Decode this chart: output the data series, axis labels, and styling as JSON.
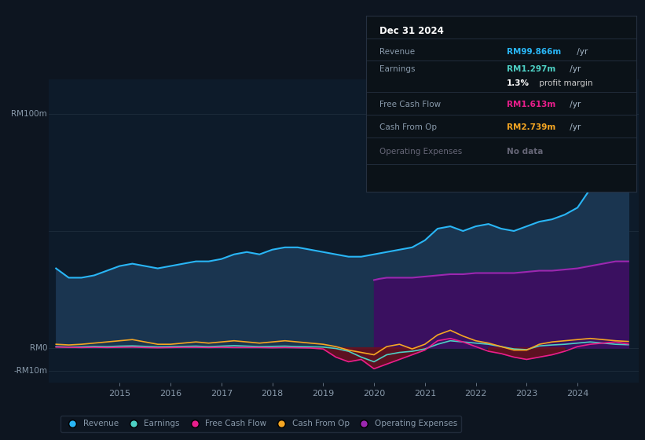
{
  "background_color": "#0d1520",
  "plot_bg_color": "#0d1b2a",
  "revenue_color": "#29b6f6",
  "revenue_fill": "#1a3550",
  "earnings_color": "#4dd0c4",
  "fcf_color": "#e91e8c",
  "cashop_color": "#f5a623",
  "opex_color": "#9c27b0",
  "opex_fill": "#3a1060",
  "fcf_neg_fill": "#6b1020",
  "grid_color": "#1e2d3d",
  "text_color": "#8899aa",
  "legend_labels": [
    "Revenue",
    "Earnings",
    "Free Cash Flow",
    "Cash From Op",
    "Operating Expenses"
  ],
  "legend_colors": [
    "#29b6f6",
    "#4dd0c4",
    "#e91e8c",
    "#f5a623",
    "#9c27b0"
  ],
  "ylim": [
    -15,
    115
  ],
  "xlim": [
    2013.6,
    2025.2
  ],
  "xtick_positions": [
    2015,
    2016,
    2017,
    2018,
    2019,
    2020,
    2021,
    2022,
    2023,
    2024
  ],
  "xtick_labels": [
    "2015",
    "2016",
    "2017",
    "2018",
    "2019",
    "2020",
    "2021",
    "2022",
    "2023",
    "2024"
  ],
  "ylabel_100": "RM100m",
  "ylabel_0": "RM0",
  "ylabel_neg10": "-RM10m",
  "info_title": "Dec 31 2024",
  "info_rows": [
    {
      "label": "Revenue",
      "value": "RM99.866m",
      "suffix": " /yr",
      "value_color": "#29b6f6",
      "label_color": "#8899aa"
    },
    {
      "label": "Earnings",
      "value": "RM1.297m",
      "suffix": " /yr",
      "value_color": "#4dd0c4",
      "label_color": "#8899aa"
    },
    {
      "label": "",
      "value": "1.3%",
      "suffix": " profit margin",
      "value_color": "#ffffff",
      "label_color": "#8899aa"
    },
    {
      "label": "Free Cash Flow",
      "value": "RM1.613m",
      "suffix": " /yr",
      "value_color": "#e91e8c",
      "label_color": "#8899aa"
    },
    {
      "label": "Cash From Op",
      "value": "RM2.739m",
      "suffix": " /yr",
      "value_color": "#f5a623",
      "label_color": "#8899aa"
    },
    {
      "label": "Operating Expenses",
      "value": "No data",
      "suffix": "",
      "value_color": "#666677",
      "label_color": "#666677"
    }
  ],
  "revenue_x": [
    2013.75,
    2014.0,
    2014.25,
    2014.5,
    2014.75,
    2015.0,
    2015.25,
    2015.5,
    2015.75,
    2016.0,
    2016.25,
    2016.5,
    2016.75,
    2017.0,
    2017.25,
    2017.5,
    2017.75,
    2018.0,
    2018.25,
    2018.5,
    2018.75,
    2019.0,
    2019.25,
    2019.5,
    2019.75,
    2020.0,
    2020.25,
    2020.5,
    2020.75,
    2021.0,
    2021.25,
    2021.5,
    2021.75,
    2022.0,
    2022.25,
    2022.5,
    2022.75,
    2023.0,
    2023.25,
    2023.5,
    2023.75,
    2024.0,
    2024.25,
    2024.5,
    2024.75,
    2025.0
  ],
  "revenue_y": [
    34,
    30,
    30,
    31,
    33,
    35,
    36,
    35,
    34,
    35,
    36,
    37,
    37,
    38,
    40,
    41,
    40,
    42,
    43,
    43,
    42,
    41,
    40,
    39,
    39,
    40,
    41,
    42,
    43,
    46,
    51,
    52,
    50,
    52,
    53,
    51,
    50,
    52,
    54,
    55,
    57,
    60,
    68,
    80,
    97,
    100
  ],
  "earnings_x": [
    2013.75,
    2014.0,
    2014.25,
    2014.5,
    2014.75,
    2015.0,
    2015.25,
    2015.5,
    2015.75,
    2016.0,
    2016.25,
    2016.5,
    2016.75,
    2017.0,
    2017.25,
    2017.5,
    2017.75,
    2018.0,
    2018.25,
    2018.5,
    2018.75,
    2019.0,
    2019.25,
    2019.5,
    2019.75,
    2020.0,
    2020.25,
    2020.5,
    2020.75,
    2021.0,
    2021.25,
    2021.5,
    2021.75,
    2022.0,
    2022.25,
    2022.5,
    2022.75,
    2023.0,
    2023.25,
    2023.5,
    2023.75,
    2024.0,
    2024.25,
    2024.5,
    2024.75,
    2025.0
  ],
  "earnings_y": [
    0.5,
    0.3,
    0.4,
    0.6,
    0.5,
    0.7,
    0.8,
    0.6,
    0.4,
    0.5,
    0.6,
    0.7,
    0.5,
    0.7,
    0.9,
    0.7,
    0.5,
    0.6,
    0.7,
    0.5,
    0.4,
    0.3,
    -0.3,
    -1.5,
    -4,
    -6,
    -3,
    -2,
    -1.5,
    -0.5,
    1.5,
    3,
    2.5,
    2,
    1.5,
    0.5,
    -0.5,
    -0.8,
    0.8,
    1.2,
    1.5,
    2,
    2.5,
    2,
    1.5,
    1.3
  ],
  "fcf_x": [
    2013.75,
    2014.0,
    2014.25,
    2014.5,
    2014.75,
    2015.0,
    2015.25,
    2015.5,
    2015.75,
    2016.0,
    2016.25,
    2016.5,
    2016.75,
    2017.0,
    2017.25,
    2017.5,
    2017.75,
    2018.0,
    2018.25,
    2018.5,
    2018.75,
    2019.0,
    2019.25,
    2019.5,
    2019.75,
    2020.0,
    2020.25,
    2020.5,
    2020.75,
    2021.0,
    2021.25,
    2021.5,
    2021.75,
    2022.0,
    2022.25,
    2022.5,
    2022.75,
    2023.0,
    2023.25,
    2023.5,
    2023.75,
    2024.0,
    2024.25,
    2024.5,
    2024.75,
    2025.0
  ],
  "fcf_y": [
    0.3,
    0.2,
    0.1,
    0.2,
    0.1,
    0.2,
    0.3,
    0.1,
    0.0,
    0.1,
    0.2,
    0.2,
    0.1,
    0.2,
    0.1,
    0.1,
    0.1,
    0.0,
    0.1,
    0.0,
    -0.1,
    -0.5,
    -4,
    -6,
    -5,
    -9,
    -7,
    -5,
    -3,
    -1,
    3,
    4,
    2.5,
    0.5,
    -1.5,
    -2.5,
    -4,
    -5,
    -4,
    -3,
    -1.5,
    0.5,
    1.5,
    2,
    2.5,
    1.6
  ],
  "cashop_x": [
    2013.75,
    2014.0,
    2014.25,
    2014.5,
    2014.75,
    2015.0,
    2015.25,
    2015.5,
    2015.75,
    2016.0,
    2016.25,
    2016.5,
    2016.75,
    2017.0,
    2017.25,
    2017.5,
    2017.75,
    2018.0,
    2018.25,
    2018.5,
    2018.75,
    2019.0,
    2019.25,
    2019.5,
    2019.75,
    2020.0,
    2020.25,
    2020.5,
    2020.75,
    2021.0,
    2021.25,
    2021.5,
    2021.75,
    2022.0,
    2022.25,
    2022.5,
    2022.75,
    2023.0,
    2023.25,
    2023.5,
    2023.75,
    2024.0,
    2024.25,
    2024.5,
    2024.75,
    2025.0
  ],
  "cashop_y": [
    1.5,
    1.2,
    1.5,
    2,
    2.5,
    3,
    3.5,
    2.5,
    1.5,
    1.5,
    2,
    2.5,
    2,
    2.5,
    3,
    2.5,
    2,
    2.5,
    3,
    2.5,
    2,
    1.5,
    0.5,
    -1,
    -2,
    -3,
    0.5,
    1.5,
    -0.5,
    1.5,
    5.5,
    7.5,
    5,
    3,
    2,
    0.5,
    -1,
    -1,
    1.5,
    2.5,
    3,
    3.5,
    4,
    3.5,
    3,
    2.7
  ],
  "opex_x": [
    2020.0,
    2020.1,
    2020.25,
    2020.5,
    2020.75,
    2021.0,
    2021.25,
    2021.5,
    2021.75,
    2022.0,
    2022.25,
    2022.5,
    2022.75,
    2023.0,
    2023.25,
    2023.5,
    2023.75,
    2024.0,
    2024.25,
    2024.5,
    2024.75,
    2025.0
  ],
  "opex_y": [
    29,
    29.5,
    30,
    30,
    30,
    30.5,
    31,
    31.5,
    31.5,
    32,
    32,
    32,
    32,
    32.5,
    33,
    33,
    33.5,
    34,
    35,
    36,
    37,
    37
  ]
}
